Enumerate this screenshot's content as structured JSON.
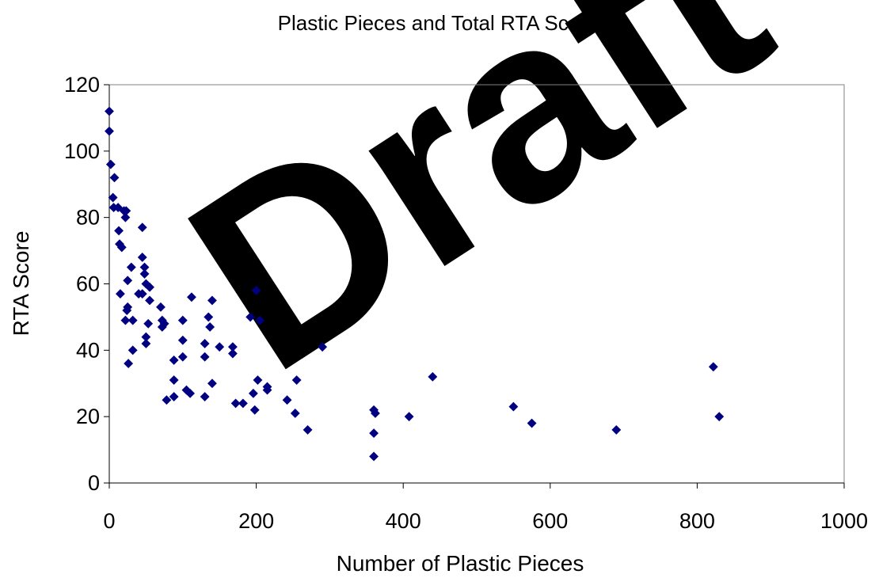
{
  "chart_data": {
    "type": "scatter",
    "title": "Plastic Pieces and Total RTA Score",
    "xlabel": "Number of Plastic Pieces",
    "ylabel": "RTA Score",
    "xlim": [
      0,
      1000
    ],
    "ylim": [
      0,
      120
    ],
    "xticks": [
      "0",
      "200",
      "400",
      "600",
      "800",
      "1000"
    ],
    "yticks": [
      "0",
      "20",
      "40",
      "60",
      "80",
      "100",
      "120"
    ],
    "grid": false,
    "legend": "none",
    "marker": "diamond",
    "marker_color": "#000080",
    "points": [
      [
        0,
        112
      ],
      [
        0,
        106
      ],
      [
        2,
        96
      ],
      [
        7,
        92
      ],
      [
        5,
        86
      ],
      [
        6,
        83
      ],
      [
        12,
        83
      ],
      [
        20,
        82
      ],
      [
        23,
        82
      ],
      [
        22,
        80
      ],
      [
        13,
        76
      ],
      [
        14,
        72
      ],
      [
        17,
        71
      ],
      [
        45,
        77
      ],
      [
        45,
        68
      ],
      [
        48,
        65
      ],
      [
        48,
        63
      ],
      [
        30,
        65
      ],
      [
        25,
        61
      ],
      [
        50,
        60
      ],
      [
        55,
        59
      ],
      [
        40,
        57
      ],
      [
        45,
        57
      ],
      [
        15,
        57
      ],
      [
        55,
        55
      ],
      [
        25,
        53
      ],
      [
        24,
        52
      ],
      [
        70,
        53
      ],
      [
        72,
        49
      ],
      [
        75,
        48
      ],
      [
        72,
        47
      ],
      [
        22,
        49
      ],
      [
        32,
        49
      ],
      [
        53,
        48
      ],
      [
        50,
        44
      ],
      [
        50,
        42
      ],
      [
        32,
        40
      ],
      [
        26,
        36
      ],
      [
        112,
        56
      ],
      [
        140,
        55
      ],
      [
        135,
        50
      ],
      [
        137,
        47
      ],
      [
        100,
        49
      ],
      [
        100,
        43
      ],
      [
        130,
        42
      ],
      [
        130,
        38
      ],
      [
        100,
        38
      ],
      [
        88,
        37
      ],
      [
        88,
        31
      ],
      [
        105,
        28
      ],
      [
        110,
        27
      ],
      [
        88,
        26
      ],
      [
        78,
        25
      ],
      [
        130,
        26
      ],
      [
        140,
        30
      ],
      [
        150,
        41
      ],
      [
        168,
        41
      ],
      [
        168,
        39
      ],
      [
        192,
        50
      ],
      [
        200,
        58
      ],
      [
        205,
        49
      ],
      [
        202,
        31
      ],
      [
        196,
        27
      ],
      [
        198,
        22
      ],
      [
        172,
        24
      ],
      [
        182,
        24
      ],
      [
        215,
        29
      ],
      [
        215,
        28
      ],
      [
        242,
        25
      ],
      [
        255,
        31
      ],
      [
        253,
        21
      ],
      [
        270,
        16
      ],
      [
        290,
        41
      ],
      [
        360,
        22
      ],
      [
        362,
        21
      ],
      [
        360,
        15
      ],
      [
        360,
        8
      ],
      [
        408,
        20
      ],
      [
        440,
        32
      ],
      [
        550,
        23
      ],
      [
        575,
        18
      ],
      [
        690,
        16
      ],
      [
        822,
        35
      ],
      [
        830,
        20
      ]
    ]
  },
  "watermark": "Draft"
}
